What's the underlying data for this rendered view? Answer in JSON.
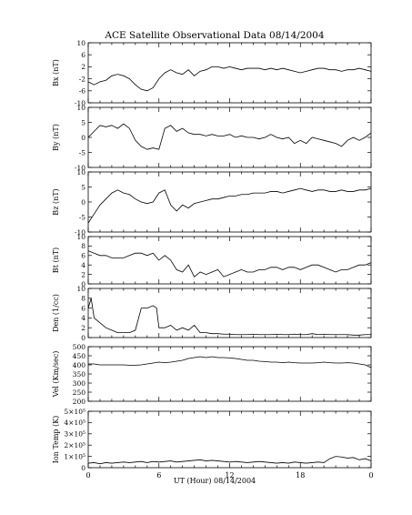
{
  "figure": {
    "title": "ACE Satellite Observational Data   08/14/2004",
    "xlabel": "UT (Hour)   08/14/2004",
    "xticks": [
      "0",
      "6",
      "12",
      "18",
      "0"
    ]
  },
  "chart_data": [
    {
      "type": "line",
      "ylabel": "Bx (nT)",
      "ylim": [
        -10,
        10
      ],
      "yticks": [
        "10",
        "6",
        "2",
        "-2",
        "-6",
        "-10"
      ],
      "ytick_values": [
        10,
        6,
        2,
        -2,
        -6,
        -10
      ],
      "series": [
        {
          "x": [
            0,
            0.5,
            1,
            1.5,
            2,
            2.5,
            3,
            3.5,
            4,
            4.5,
            5,
            5.5,
            6,
            6.5,
            7,
            7.5,
            8,
            8.5,
            9,
            9.5,
            10,
            10.5,
            11,
            11.5,
            12,
            12.5,
            13,
            13.5,
            14,
            14.5,
            15,
            15.5,
            16,
            16.5,
            17,
            17.5,
            18,
            18.5,
            19,
            19.5,
            20,
            20.5,
            21,
            21.5,
            22,
            22.5,
            23,
            23.5,
            24
          ],
          "y": [
            -3,
            -4,
            -3,
            -2.5,
            -1,
            -0.5,
            -1,
            -2,
            -4,
            -5.5,
            -6,
            -5,
            -2,
            0,
            1,
            0,
            -0.5,
            1,
            -1,
            0.5,
            1,
            2,
            2,
            1.5,
            2,
            1.5,
            1,
            1.5,
            1.5,
            1.5,
            1,
            1.5,
            1,
            1.5,
            1,
            0.5,
            0,
            0.5,
            1,
            1.5,
            1.5,
            1,
            1,
            0.5,
            1,
            1,
            1.5,
            1,
            0.5
          ]
        }
      ]
    },
    {
      "type": "line",
      "ylabel": "By (nT)",
      "ylim": [
        -10,
        10
      ],
      "yticks": [
        "10",
        "5",
        "0",
        "-5",
        "-10"
      ],
      "ytick_values": [
        10,
        5,
        0,
        -5,
        -10
      ],
      "series": [
        {
          "x": [
            0,
            0.5,
            1,
            1.5,
            2,
            2.5,
            3,
            3.5,
            4,
            4.5,
            5,
            5.5,
            6,
            6.5,
            7,
            7.5,
            8,
            8.5,
            9,
            9.5,
            10,
            10.5,
            11,
            11.5,
            12,
            12.5,
            13,
            13.5,
            14,
            14.5,
            15,
            15.5,
            16,
            16.5,
            17,
            17.5,
            18,
            18.5,
            19,
            19.5,
            20,
            20.5,
            21,
            21.5,
            22,
            22.5,
            23,
            23.5,
            24
          ],
          "y": [
            0,
            2,
            4,
            3.5,
            4,
            3,
            4.5,
            3,
            -1,
            -3,
            -4,
            -3.5,
            -4,
            3,
            4,
            2,
            3,
            1.5,
            1,
            1,
            0.5,
            1,
            0.5,
            0.5,
            1,
            0,
            0.5,
            0,
            0,
            -0.5,
            0,
            1,
            0,
            -0.5,
            0,
            -2,
            -1,
            -2,
            0,
            -0.5,
            -1,
            -1.5,
            -2,
            -3,
            -1,
            0,
            -1,
            0,
            1.5
          ]
        }
      ]
    },
    {
      "type": "line",
      "ylabel": "Bz (nT)",
      "ylim": [
        -10,
        10
      ],
      "yticks": [
        "10",
        "5",
        "0",
        "-5",
        "-10"
      ],
      "ytick_values": [
        10,
        5,
        0,
        -5,
        -10
      ],
      "series": [
        {
          "x": [
            0,
            0.5,
            1,
            1.5,
            2,
            2.5,
            3,
            3.5,
            4,
            4.5,
            5,
            5.5,
            6,
            6.5,
            7,
            7.5,
            8,
            8.5,
            9,
            9.5,
            10,
            10.5,
            11,
            11.5,
            12,
            12.5,
            13,
            13.5,
            14,
            14.5,
            15,
            15.5,
            16,
            16.5,
            17,
            17.5,
            18,
            18.5,
            19,
            19.5,
            20,
            20.5,
            21,
            21.5,
            22,
            22.5,
            23,
            23.5,
            24
          ],
          "y": [
            -7,
            -4,
            -1,
            1,
            3,
            4,
            3,
            2.5,
            1,
            0,
            -0.5,
            0,
            3,
            4,
            -1,
            -3,
            -1,
            -2,
            -0.5,
            0,
            0.5,
            1,
            1,
            1.5,
            2,
            2,
            2.5,
            2.5,
            3,
            3,
            3,
            3.5,
            3.5,
            3,
            3.5,
            4,
            4.5,
            4,
            3.5,
            4,
            4,
            3.5,
            3.5,
            4,
            3.5,
            3.5,
            4,
            4,
            4.5
          ]
        }
      ]
    },
    {
      "type": "line",
      "ylabel": "Bt (nT)",
      "ylim": [
        0,
        10
      ],
      "yticks": [
        "10",
        "8",
        "6",
        "4",
        "2",
        "0"
      ],
      "ytick_values": [
        10,
        8,
        6,
        4,
        2,
        0
      ],
      "series": [
        {
          "x": [
            0,
            0.5,
            1,
            1.5,
            2,
            2.5,
            3,
            3.5,
            4,
            4.5,
            5,
            5.5,
            6,
            6.5,
            7,
            7.5,
            8,
            8.5,
            9,
            9.5,
            10,
            10.5,
            11,
            11.5,
            12,
            12.5,
            13,
            13.5,
            14,
            14.5,
            15,
            15.5,
            16,
            16.5,
            17,
            17.5,
            18,
            18.5,
            19,
            19.5,
            20,
            20.5,
            21,
            21.5,
            22,
            22.5,
            23,
            23.5,
            24
          ],
          "y": [
            7,
            6.5,
            6,
            6,
            5.5,
            5.5,
            5.5,
            6,
            6.5,
            6.5,
            6,
            6.5,
            5,
            6,
            5,
            3,
            2.5,
            4,
            1.5,
            2.5,
            2,
            2.5,
            3,
            1.5,
            2,
            2.5,
            3,
            2.5,
            2.5,
            3,
            3,
            3.5,
            3.5,
            3,
            3.5,
            3.5,
            3,
            3.5,
            4,
            4,
            3.5,
            3,
            2.5,
            3,
            3,
            3.5,
            4,
            4,
            4.5
          ]
        }
      ]
    },
    {
      "type": "line",
      "ylabel": "Den (1/cc)",
      "ylim": [
        0,
        10
      ],
      "yticks": [
        "10",
        "8",
        "6",
        "4",
        "2",
        "0"
      ],
      "ytick_values": [
        10,
        8,
        6,
        4,
        2,
        0
      ],
      "series": [
        {
          "x": [
            0,
            0.25,
            0.5,
            1,
            1.5,
            2,
            2.5,
            3,
            3.5,
            4,
            4.5,
            5,
            5.5,
            5.8,
            6,
            6.5,
            7,
            7.5,
            8,
            8.5,
            9,
            9.5,
            10,
            10.5,
            11,
            11.5,
            12,
            12.5,
            13,
            13.5,
            14,
            14.5,
            15,
            15.5,
            16,
            16.5,
            17,
            17.5,
            18,
            18.5,
            19,
            19.5,
            20,
            20.5,
            21,
            21.5,
            22,
            22.5,
            23,
            23.5,
            24
          ],
          "y": [
            6,
            8,
            4,
            3,
            2,
            1.5,
            1,
            1,
            1,
            1.5,
            6,
            6,
            6.5,
            6,
            2,
            2,
            2.5,
            1.5,
            2,
            1.5,
            2.5,
            1,
            1,
            0.8,
            0.8,
            0.7,
            0.7,
            0.6,
            0.6,
            0.6,
            0.7,
            0.6,
            0.6,
            0.6,
            0.7,
            0.6,
            0.6,
            0.7,
            0.6,
            0.6,
            0.8,
            0.6,
            0.7,
            0.6,
            0.6,
            0.6,
            0.6,
            0.5,
            0.5,
            0.6,
            0.6
          ]
        }
      ]
    },
    {
      "type": "line",
      "ylabel": "Vel (Km/sec)",
      "ylim": [
        200,
        500
      ],
      "yticks": [
        "500",
        "450",
        "400",
        "350",
        "300",
        "250",
        "200"
      ],
      "ytick_values": [
        500,
        450,
        400,
        350,
        300,
        250,
        200
      ],
      "series": [
        {
          "x": [
            0,
            0.5,
            1,
            1.5,
            2,
            2.5,
            3,
            3.5,
            4,
            4.5,
            5,
            5.5,
            6,
            6.5,
            7,
            7.5,
            8,
            8.5,
            9,
            9.5,
            10,
            10.5,
            11,
            11.5,
            12,
            12.5,
            13,
            13.5,
            14,
            14.5,
            15,
            15.5,
            16,
            16.5,
            17,
            17.5,
            18,
            18.5,
            19,
            19.5,
            20,
            20.5,
            21,
            21.5,
            22,
            22.5,
            23,
            23.5,
            24
          ],
          "y": [
            405,
            405,
            400,
            400,
            400,
            400,
            400,
            398,
            398,
            400,
            405,
            410,
            415,
            412,
            415,
            420,
            425,
            435,
            440,
            445,
            440,
            445,
            440,
            440,
            438,
            435,
            430,
            425,
            425,
            420,
            418,
            415,
            415,
            412,
            415,
            412,
            410,
            410,
            410,
            412,
            415,
            412,
            410,
            410,
            412,
            410,
            405,
            400,
            385
          ]
        }
      ]
    },
    {
      "type": "line",
      "ylabel": "Ion Temp (K)",
      "ylim": [
        0,
        500000
      ],
      "yticks": [
        "5×10⁵",
        "4×10⁵",
        "3×10⁵",
        "2×10⁵",
        "1×10⁵",
        "0"
      ],
      "ytick_values": [
        500000,
        400000,
        300000,
        200000,
        100000,
        0
      ],
      "series": [
        {
          "x": [
            0,
            0.5,
            1,
            1.5,
            2,
            2.5,
            3,
            3.5,
            4,
            4.5,
            5,
            5.5,
            6,
            6.5,
            7,
            7.5,
            8,
            8.5,
            9,
            9.5,
            10,
            10.5,
            11,
            11.5,
            12,
            12.5,
            13,
            13.5,
            14,
            14.5,
            15,
            15.5,
            16,
            16.5,
            17,
            17.5,
            18,
            18.5,
            19,
            19.5,
            20,
            20.5,
            21,
            21.5,
            22,
            22.5,
            23,
            23.5,
            24
          ],
          "y": [
            40000,
            45000,
            35000,
            45000,
            40000,
            45000,
            50000,
            45000,
            50000,
            55000,
            45000,
            55000,
            50000,
            55000,
            60000,
            50000,
            55000,
            60000,
            65000,
            70000,
            60000,
            65000,
            60000,
            55000,
            50000,
            55000,
            50000,
            45000,
            50000,
            55000,
            50000,
            45000,
            40000,
            45000,
            40000,
            50000,
            45000,
            40000,
            45000,
            50000,
            45000,
            80000,
            100000,
            95000,
            85000,
            90000,
            70000,
            80000,
            60000
          ]
        }
      ]
    }
  ]
}
